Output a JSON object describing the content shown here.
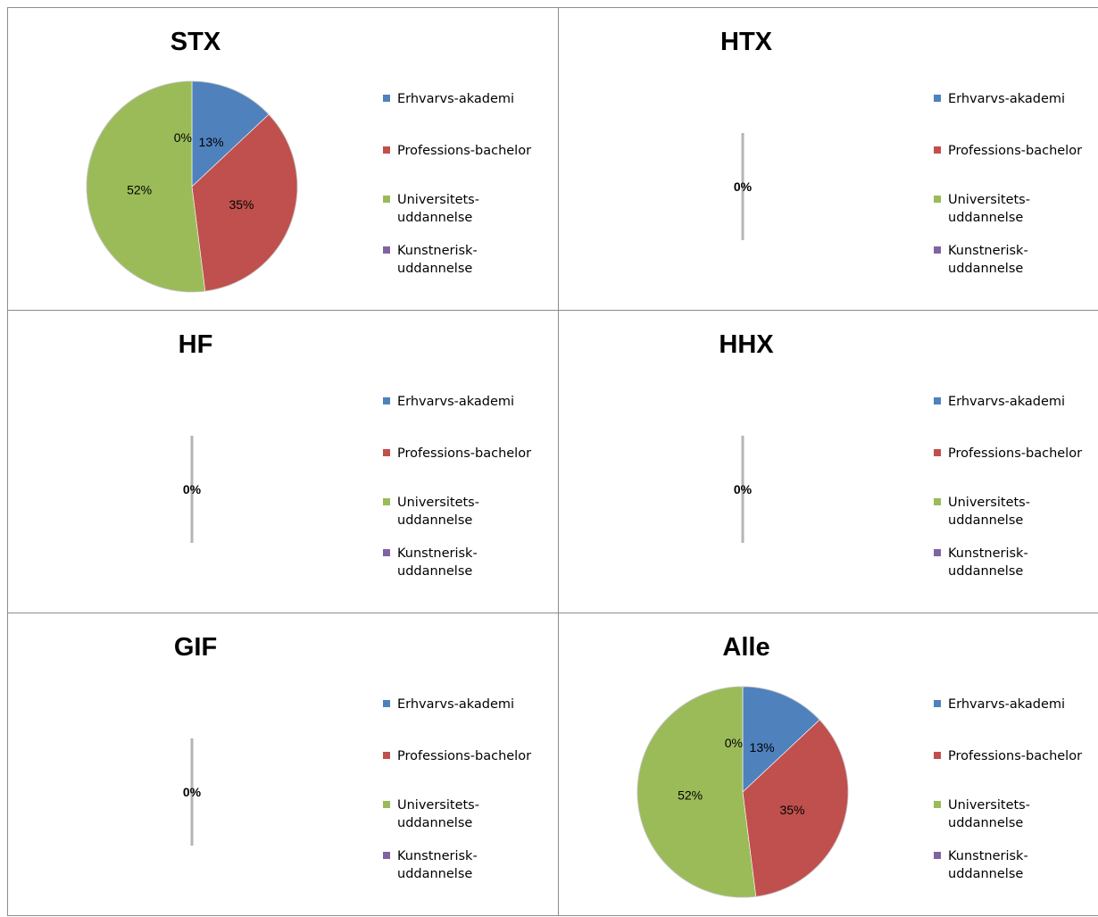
{
  "legend_entries": [
    {
      "label_lines": [
        "Erhvarvs-akademi"
      ],
      "color": "#4F81BD"
    },
    {
      "label_lines": [
        "Professions-bachelor"
      ],
      "color": "#C0504D"
    },
    {
      "label_lines": [
        "Universitets-",
        "uddannelse"
      ],
      "color": "#9BBB59"
    },
    {
      "label_lines": [
        "Kunstnerisk-",
        "uddannelse"
      ],
      "color": "#8064A2"
    }
  ],
  "chart_data": [
    {
      "type": "pie",
      "title": "STX",
      "categories": [
        "Erhvarvs-akademi",
        "Professions-bachelor",
        "Universitets-uddannelse",
        "Kunstnerisk-uddannelse"
      ],
      "values": [
        13,
        35,
        52,
        0
      ],
      "data_labels": [
        "13%",
        "35%",
        "52%",
        "0%"
      ],
      "legend": "right"
    },
    {
      "type": "pie",
      "title": "HTX",
      "categories": [
        "Erhvarvs-akademi",
        "Professions-bachelor",
        "Universitets-uddannelse",
        "Kunstnerisk-uddannelse"
      ],
      "values": [
        0,
        0,
        0,
        0
      ],
      "data_labels": [
        "0%"
      ],
      "legend": "right"
    },
    {
      "type": "pie",
      "title": "HF",
      "categories": [
        "Erhvarvs-akademi",
        "Professions-bachelor",
        "Universitets-uddannelse",
        "Kunstnerisk-uddannelse"
      ],
      "values": [
        0,
        0,
        0,
        0
      ],
      "data_labels": [
        "0%"
      ],
      "legend": "right"
    },
    {
      "type": "pie",
      "title": "HHX",
      "categories": [
        "Erhvarvs-akademi",
        "Professions-bachelor",
        "Universitets-uddannelse",
        "Kunstnerisk-uddannelse"
      ],
      "values": [
        0,
        0,
        0,
        0
      ],
      "data_labels": [
        "0%"
      ],
      "legend": "right"
    },
    {
      "type": "pie",
      "title": "GIF",
      "categories": [
        "Erhvarvs-akademi",
        "Professions-bachelor",
        "Universitets-uddannelse",
        "Kunstnerisk-uddannelse"
      ],
      "values": [
        0,
        0,
        0,
        0
      ],
      "data_labels": [
        "0%"
      ],
      "legend": "right"
    },
    {
      "type": "pie",
      "title": "Alle",
      "categories": [
        "Erhvarvs-akademi",
        "Professions-bachelor",
        "Universitets-uddannelse",
        "Kunstnerisk-uddannelse"
      ],
      "values": [
        13,
        35,
        52,
        0
      ],
      "data_labels": [
        "13%",
        "35%",
        "52%",
        "0%"
      ],
      "legend": "right"
    }
  ]
}
